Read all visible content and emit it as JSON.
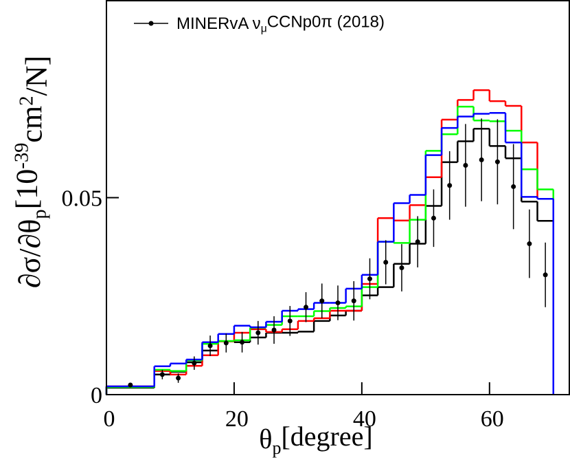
{
  "chart_data": {
    "type": "histogram",
    "x_label": [
      "θ",
      {
        "sub": "p"
      },
      "[degree]"
    ],
    "y_label": [
      "∂σ/∂θ",
      {
        "sub": "p"
      },
      "[10",
      {
        "sup": "-39"
      },
      "cm",
      {
        "sup": "2"
      },
      "/N]"
    ],
    "bins": [
      0,
      7.5,
      10,
      12.5,
      15,
      17.5,
      20,
      22.5,
      25,
      27.5,
      30,
      32.5,
      35,
      37.5,
      40,
      42.5,
      45,
      47.5,
      50,
      52.5,
      55,
      57.5,
      60,
      62.5,
      65,
      67.5,
      70
    ],
    "xlim": [
      0,
      72.5
    ],
    "ylim": [
      0,
      0.1
    ],
    "xticks": [
      0,
      20,
      40,
      60
    ],
    "yticks": [
      0,
      0.05
    ],
    "legend": "top-left",
    "series": [
      {
        "color": "#000000",
        "values": [
          0.00175,
          0.0051,
          0.0058,
          0.0082,
          0.0112,
          0.0136,
          0.0133,
          0.0145,
          0.0157,
          0.0157,
          0.016,
          0.0187,
          0.0201,
          0.0213,
          0.0252,
          0.0273,
          0.0332,
          0.0383,
          0.0479,
          0.059,
          0.0643,
          0.0675,
          0.0631,
          0.06,
          0.049,
          0.0441
        ]
      },
      {
        "color": "#ff0000",
        "values": [
          0.0021,
          0.006,
          0.0051,
          0.0073,
          0.01,
          0.0135,
          0.0157,
          0.0166,
          0.0159,
          0.0166,
          0.0187,
          0.0194,
          0.0213,
          0.0213,
          0.0281,
          0.0448,
          0.0442,
          0.0481,
          0.0552,
          0.0698,
          0.0748,
          0.0773,
          0.0745,
          0.0733,
          0.064,
          0.0497
        ]
      },
      {
        "color": "#00ff00",
        "values": [
          0.0019,
          0.0063,
          0.006,
          0.0087,
          0.0129,
          0.0136,
          0.0138,
          0.017,
          0.0177,
          0.0199,
          0.0199,
          0.0212,
          0.022,
          0.0224,
          0.0273,
          0.0388,
          0.0385,
          0.0444,
          0.0619,
          0.0661,
          0.0731,
          0.0696,
          0.0694,
          0.067,
          0.0572,
          0.0521
        ]
      },
      {
        "color": "#0000ff",
        "values": [
          0.0021,
          0.0072,
          0.0079,
          0.0089,
          0.0133,
          0.0154,
          0.0175,
          0.0171,
          0.0185,
          0.0213,
          0.0217,
          0.0233,
          0.0233,
          0.0269,
          0.0304,
          0.0388,
          0.0486,
          0.0507,
          0.0608,
          0.0677,
          0.0706,
          0.0713,
          0.0715,
          0.064,
          0.0502,
          0.0497
        ]
      },
      {
        "name": [
          "MINERvA ν",
          {
            "sub": "μ"
          },
          "CCNp0π (2018)"
        ],
        "type": "errorbar",
        "color": "#000000",
        "x": [
          3.75,
          8.75,
          11.25,
          13.75,
          16.25,
          18.75,
          21.25,
          23.75,
          26.25,
          28.75,
          31.25,
          33.75,
          36.25,
          38.75,
          41.25,
          43.75,
          46.25,
          48.75,
          51.25,
          53.75,
          56.25,
          58.75,
          61.25,
          63.75,
          66.25,
          68.75
        ],
        "values": [
          0.00245,
          0.0051,
          0.0042,
          0.008,
          0.0124,
          0.0131,
          0.0133,
          0.0157,
          0.0164,
          0.0187,
          0.0222,
          0.0238,
          0.0233,
          0.0238,
          0.0294,
          0.0336,
          0.0322,
          0.0388,
          0.0448,
          0.0531,
          0.0582,
          0.0596,
          0.0591,
          0.0528,
          0.0383,
          0.0304
        ],
        "errors": [
          0.0005,
          0.0012,
          0.0012,
          0.0017,
          0.0026,
          0.0024,
          0.0026,
          0.003,
          0.0035,
          0.0038,
          0.0038,
          0.0044,
          0.0044,
          0.005,
          0.0052,
          0.0056,
          0.006,
          0.0065,
          0.0073,
          0.0087,
          0.0105,
          0.0105,
          0.0108,
          0.0108,
          0.0087,
          0.0082
        ]
      }
    ]
  }
}
